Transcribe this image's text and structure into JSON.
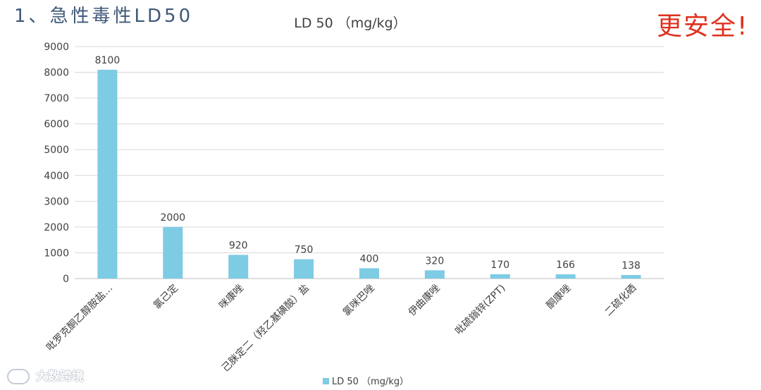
{
  "slide": {
    "title": "1、急性毒性LD50",
    "note": "更安全!",
    "watermark": "大数跨境"
  },
  "colors": {
    "bar": "#7ecbe4",
    "grid": "#d9d9d9",
    "title": "#3f5878",
    "note": "#e0301e"
  },
  "chart_data": {
    "type": "bar",
    "title": "LD 50 （mg/kg）",
    "categories": [
      "吡罗克酮乙醇胺盐…",
      "氯己定",
      "咪康唑",
      "己脒定二（羟乙基磺酸）盐",
      "氯咪巴唑",
      "伊曲康唑",
      "吡硫鎓锌(ZPT)",
      "酮康唑",
      "二硫化硒"
    ],
    "series": [
      {
        "name": "LD 50 （mg/kg）",
        "values": [
          8100,
          2000,
          920,
          750,
          400,
          320,
          170,
          166,
          138
        ]
      }
    ],
    "value_labels": [
      "8100",
      "2000",
      "920",
      "750",
      "400",
      "320",
      "170",
      "166",
      "138"
    ],
    "y_ticks": [
      "0",
      "1000",
      "2000",
      "3000",
      "4000",
      "5000",
      "6000",
      "7000",
      "8000",
      "9000"
    ],
    "ylim": [
      0,
      9000
    ],
    "grid": true,
    "legend_position": "bottom"
  }
}
